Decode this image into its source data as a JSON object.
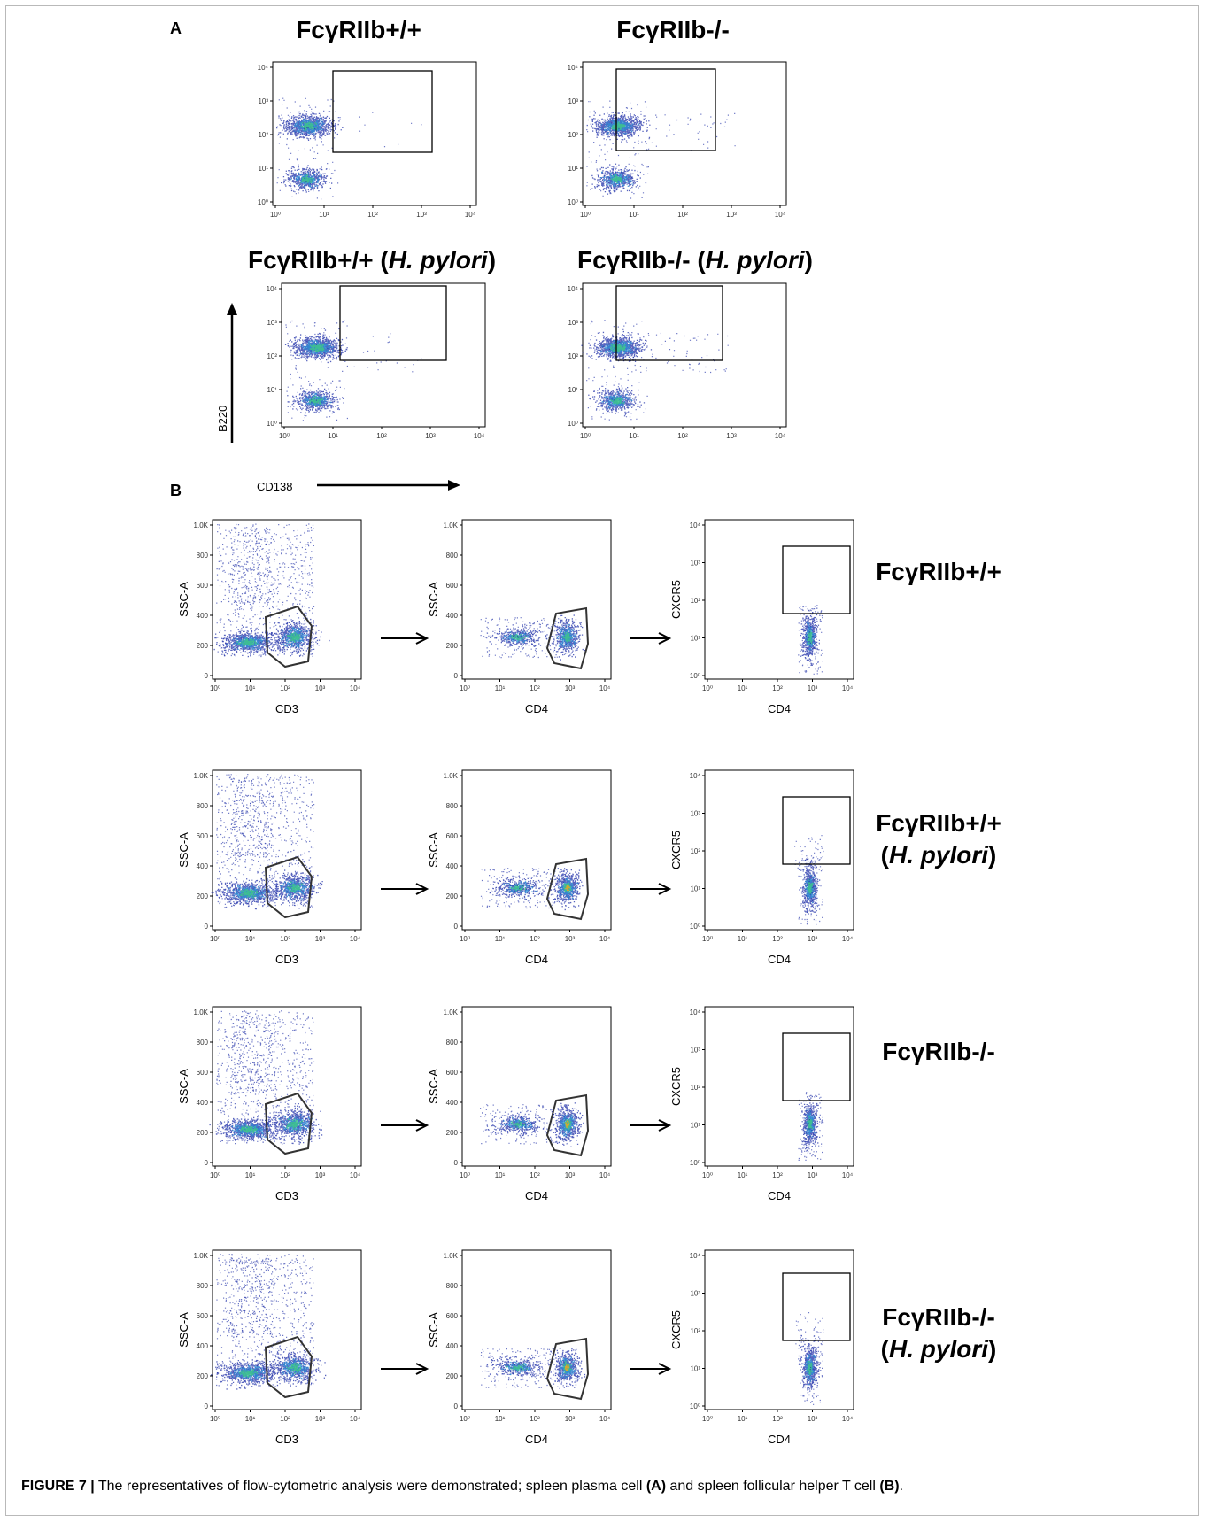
{
  "panelA": {
    "letter": "A",
    "titles": {
      "wt": "FcγRIIb+/+",
      "ko": "FcγRIIb-/-",
      "wt_hp_prefix": "FcγRIIb+/+ (",
      "ko_hp_prefix": "FcγRIIb-/- (",
      "hp_italic": "H. pylori",
      "hp_suffix": ")"
    },
    "y_axis_label": "B220",
    "x_axis_label": "CD138",
    "tick_labels": [
      "10⁰",
      "10¹",
      "10²",
      "10³",
      "10⁴"
    ]
  },
  "panelB": {
    "letter": "B",
    "y_labels": {
      "ssc": "SSC-A",
      "cxcr5": "CXCR5"
    },
    "x_labels": {
      "cd3": "CD3",
      "cd4": "CD4"
    },
    "ssc_ticks": [
      "0",
      "200",
      "400",
      "600",
      "800",
      "1.0K"
    ],
    "log_ticks": [
      "10⁰",
      "10¹",
      "10²",
      "10³",
      "10⁴"
    ],
    "row_labels": [
      {
        "line1": "FcγRIIb+/+",
        "line2_open": "",
        "line2_italic": "",
        "line2_close": ""
      },
      {
        "line1": "FcγRIIb+/+",
        "line2_open": "(",
        "line2_italic": "H. pylori",
        "line2_close": ")"
      },
      {
        "line1": "FcγRIIb-/-",
        "line2_open": "",
        "line2_italic": "",
        "line2_close": ""
      },
      {
        "line1": "FcγRIIb-/-",
        "line2_open": "(",
        "line2_italic": "H. pylori",
        "line2_close": ")"
      }
    ]
  },
  "caption": {
    "figure_label": "FIGURE 7 |",
    "text_1": " The representatives of flow-cytometric analysis were demonstrated; spleen plasma cell ",
    "ref_a": "(A)",
    "text_2": " and spleen follicular helper T cell ",
    "ref_b": "(B)",
    "text_3": "."
  },
  "colors": {
    "dot_low": "#1f2fa8",
    "dot_mid": "#2c8fd6",
    "dot_high": "#3fc58a",
    "dot_peak": "#e0a52a",
    "gate": "#333333",
    "frame": "#b9b9b9"
  }
}
